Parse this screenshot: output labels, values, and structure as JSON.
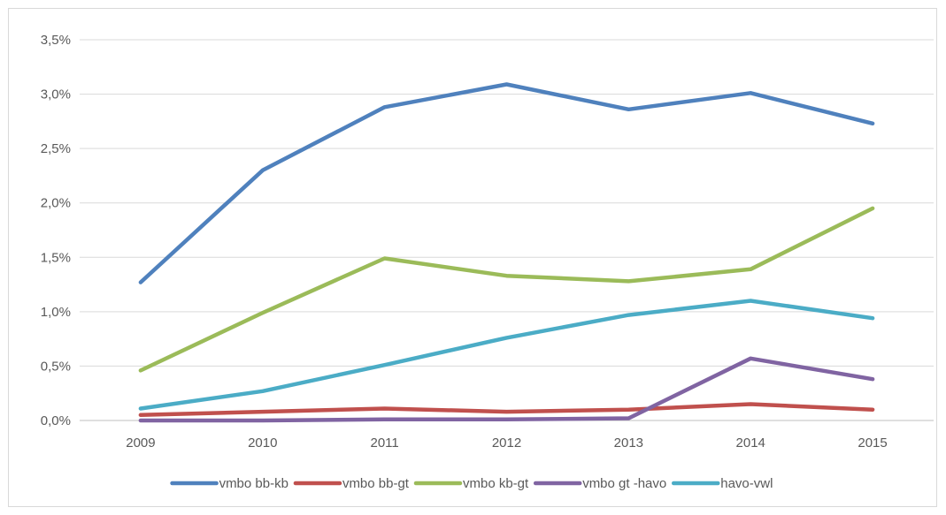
{
  "chart_data": {
    "type": "line",
    "title": "",
    "xlabel": "",
    "ylabel": "",
    "categories": [
      "2009",
      "2010",
      "2011",
      "2012",
      "2013",
      "2014",
      "2015"
    ],
    "ylim": [
      0,
      3.5
    ],
    "yticks": [
      0,
      0.5,
      1.0,
      1.5,
      2.0,
      2.5,
      3.0,
      3.5
    ],
    "ytick_labels": [
      "0,0%",
      "0,5%",
      "1,0%",
      "1,5%",
      "2,0%",
      "2,5%",
      "3,0%",
      "3,5%"
    ],
    "grid": true,
    "legend_position": "bottom",
    "series": [
      {
        "name": "vmbo bb-kb",
        "color": "#4f81bd",
        "values": [
          1.27,
          2.3,
          2.88,
          3.09,
          2.86,
          3.01,
          2.73
        ]
      },
      {
        "name": "vmbo bb-gt",
        "color": "#c0504d",
        "values": [
          0.05,
          0.08,
          0.11,
          0.08,
          0.1,
          0.15,
          0.1
        ]
      },
      {
        "name": "vmbo kb-gt",
        "color": "#9bbb59",
        "values": [
          0.46,
          0.99,
          1.49,
          1.33,
          1.28,
          1.39,
          1.95
        ]
      },
      {
        "name": "vmbo gt -havo",
        "color": "#8064a2",
        "values": [
          0.0,
          0.0,
          0.01,
          0.01,
          0.02,
          0.57,
          0.38
        ]
      },
      {
        "name": "havo-vwl",
        "color": "#4bacc6",
        "values": [
          0.11,
          0.27,
          0.51,
          0.76,
          0.97,
          1.1,
          0.94
        ]
      }
    ]
  }
}
